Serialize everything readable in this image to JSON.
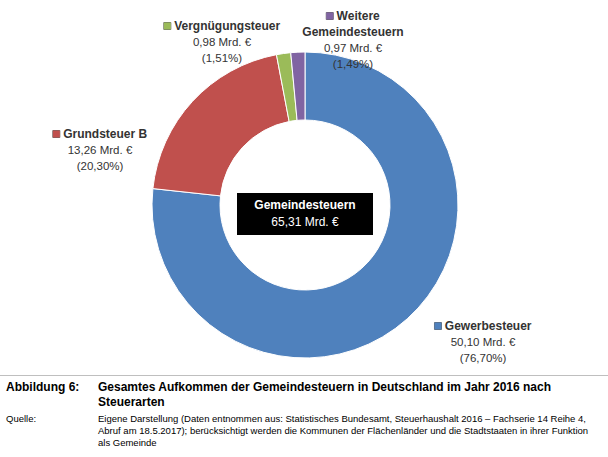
{
  "chart_data": {
    "type": "pie",
    "categories": [
      "Gewerbesteuer",
      "Grundsteuer B",
      "Vergnügungsteuer",
      "Weitere Gemeindesteuern"
    ],
    "values": [
      50.1,
      13.26,
      0.98,
      0.97
    ],
    "value_labels": [
      "50,10 Mrd. €",
      "13,26 Mrd. €",
      "0,98 Mrd. €",
      "0,97 Mrd. €"
    ],
    "percents": [
      76.7,
      20.3,
      1.51,
      1.49
    ],
    "percent_labels": [
      "(76,70%)",
      "(20,30%)",
      "(1,51%)",
      "(1,49%)"
    ],
    "colors": [
      "#4f81bd",
      "#c0504d",
      "#9bbb59",
      "#8064a2"
    ],
    "data_labels": true,
    "total": {
      "label": "Gemeindesteuern",
      "value": 65.31,
      "value_label": "65,31 Mrd. €"
    },
    "caption": {
      "label": "Abbildung 6:",
      "text": "Gesamtes Aufkommen der Gemeindesteuern in Deutschland im Jahr 2016 nach Steuerarten"
    },
    "source": {
      "label": "Quelle:",
      "text": "Eigene Darstellung (Daten entnommen aus: Statistisches Bundesamt, Steuerhaushalt 2016 – Fachserie 14 Reihe 4, Abruf am 18.5.2017); berücksichtigt werden die Kommunen der Flächenländer und die Stadtstaaten in ihrer Funktion als Gemeinde"
    }
  }
}
